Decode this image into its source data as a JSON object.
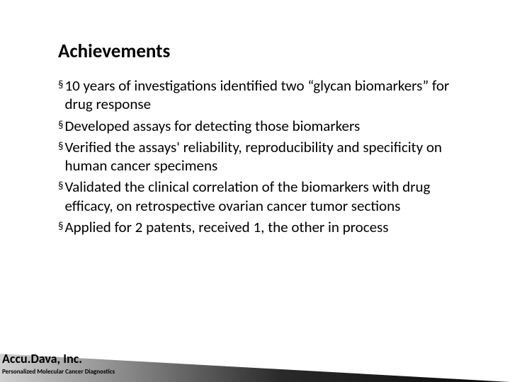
{
  "title": "Achievements",
  "bullets": [
    " 10 years of investigations identified two “glycan biomarkers” for drug response",
    "Developed assays for detecting those biomarkers",
    "Verified the assays' reliability, reproducibility and specificity on human cancer specimens",
    "Validated the clinical correlation of the biomarkers with drug efficacy, on retrospective ovarian cancer tumor sections",
    "Applied for 2 patents, received 1, the other in process"
  ],
  "company": "Accu.Dava, Inc.",
  "tagline": "Personalized Molecular Cancer Diagnostics",
  "colors": {
    "background": "#ffffff",
    "text": "#000000",
    "footer_gradient_start": "#d0d0d0",
    "footer_gradient_end": "#0a0a0a"
  },
  "fonts": {
    "title_size": 27,
    "body_size": 21,
    "company_size": 18,
    "tagline_size": 9
  }
}
